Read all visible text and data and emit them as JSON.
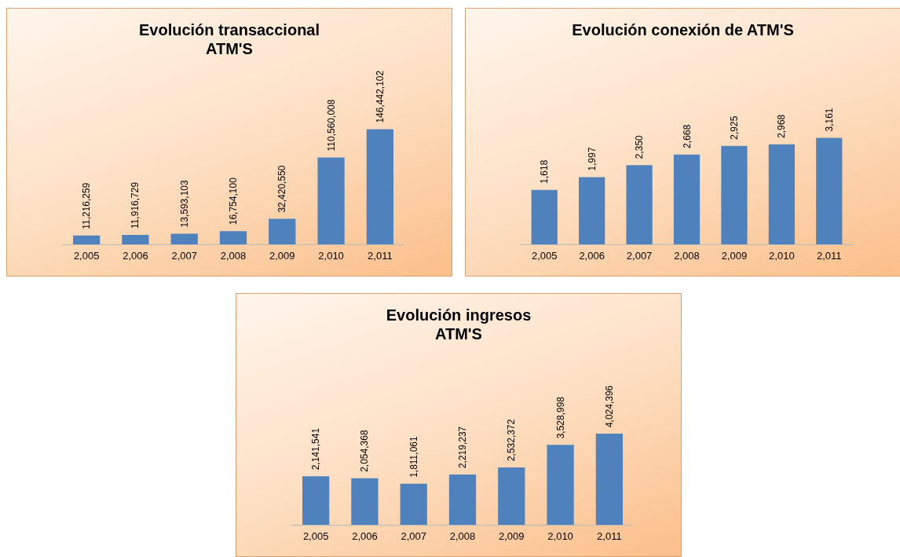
{
  "chart_data": [
    {
      "type": "bar",
      "title": "Evolución transaccional\nATM'S",
      "categories": [
        "2,005",
        "2,006",
        "2,007",
        "2,008",
        "2,009",
        "2,010",
        "2,011"
      ],
      "color": "#4f81bd",
      "values": [
        11216259,
        11916729,
        13593103,
        16754100,
        32420550,
        110560008,
        146442102
      ],
      "value_labels": [
        "11,216,259",
        "11,916,729",
        "13,593,103",
        "16,754,100",
        "32,420,550",
        "110,560,008",
        "146,442,102"
      ]
    },
    {
      "type": "bar",
      "title": "Evolución conexión de ATM'S",
      "categories": [
        "2,005",
        "2,006",
        "2,007",
        "2,008",
        "2,009",
        "2,010",
        "2,011"
      ],
      "color": "#4f81bd",
      "values": [
        1618,
        1997,
        2350,
        2668,
        2925,
        2968,
        3161
      ],
      "value_labels": [
        "1,618",
        "1,997",
        "2,350",
        "2,668",
        "2,925",
        "2,968",
        "3,161"
      ]
    },
    {
      "type": "bar",
      "title": "Evolución ingresos\nATM'S",
      "categories": [
        "2,005",
        "2,006",
        "2,007",
        "2,008",
        "2,009",
        "2,010",
        "2,011"
      ],
      "color": "#4f81bd",
      "values": [
        2141541,
        2054368,
        1811061,
        2219237,
        2532372,
        3528998,
        4024396
      ],
      "value_labels": [
        "2,141,541",
        "2,054,368",
        "1,811,061",
        "2,219,237",
        "2,532,372",
        "3,528,998",
        "4,024,396"
      ]
    }
  ]
}
